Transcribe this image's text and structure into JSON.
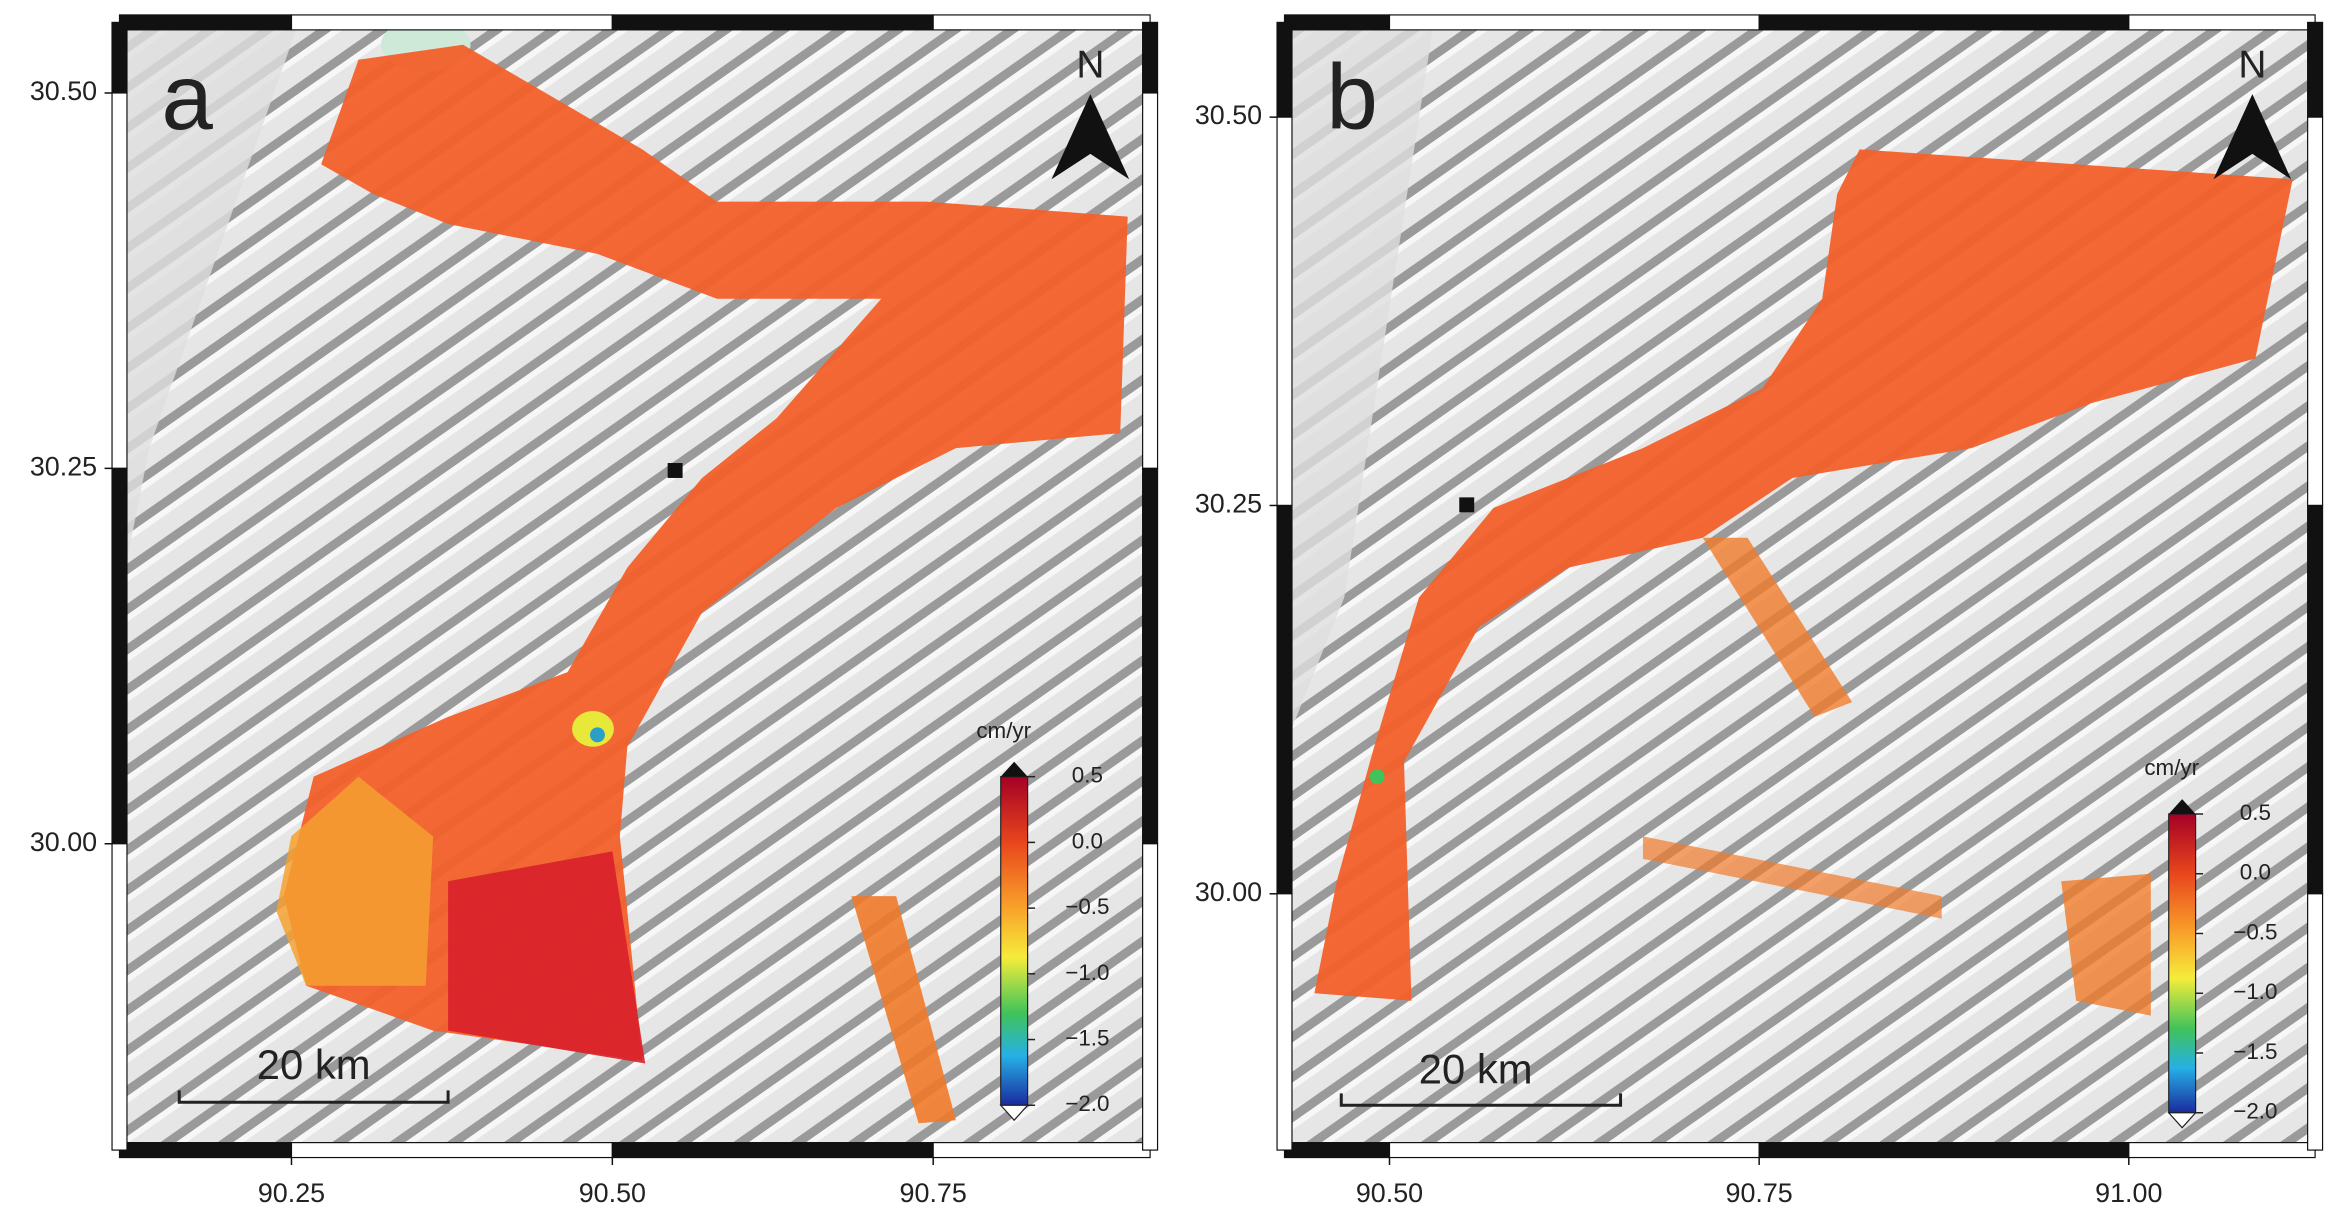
{
  "panels": [
    {
      "label": "a",
      "north": "N",
      "scale_bar": "20 km",
      "xlim": [
        90.116,
        90.919
      ],
      "ylim": [
        29.796,
        30.547
      ],
      "xticks": [
        {
          "value": 90.25,
          "label": "90.25"
        },
        {
          "value": 90.5,
          "label": "90.50"
        },
        {
          "value": 90.75,
          "label": "90.75"
        }
      ],
      "yticks": [
        {
          "value": 30.5,
          "label": "30.50"
        },
        {
          "value": 30.25,
          "label": "30.25"
        },
        {
          "value": 30.0,
          "label": "30.00"
        }
      ],
      "colorbar": {
        "unit": "cm/yr",
        "range": [
          -2.0,
          0.5
        ],
        "ticks": [
          {
            "value": 0.5,
            "label": "0.5"
          },
          {
            "value": 0.0,
            "label": "0.0"
          },
          {
            "value": -0.5,
            "label": "−0.5"
          },
          {
            "value": -1.0,
            "label": "−1.0"
          },
          {
            "value": -1.5,
            "label": "−1.5"
          },
          {
            "value": -2.0,
            "label": "−2.0"
          }
        ]
      }
    },
    {
      "label": "b",
      "north": "N",
      "scale_bar": "20 km",
      "xlim": [
        90.429,
        91.126
      ],
      "ylim": [
        29.835,
        30.561
      ],
      "xticks": [
        {
          "value": 90.5,
          "label": "90.50"
        },
        {
          "value": 90.75,
          "label": "90.75"
        },
        {
          "value": 91.0,
          "label": "91.00"
        }
      ],
      "yticks": [
        {
          "value": 30.5,
          "label": "30.50"
        },
        {
          "value": 30.25,
          "label": "30.25"
        },
        {
          "value": 30.0,
          "label": "30.00"
        }
      ],
      "colorbar": {
        "unit": "cm/yr",
        "range": [
          -2.0,
          0.5
        ],
        "ticks": [
          {
            "value": 0.5,
            "label": "0.5"
          },
          {
            "value": 0.0,
            "label": "0.0"
          },
          {
            "value": -0.5,
            "label": "−0.5"
          },
          {
            "value": -1.0,
            "label": "−1.0"
          },
          {
            "value": -1.5,
            "label": "−1.5"
          },
          {
            "value": -2.0,
            "label": "−2.0"
          }
        ]
      }
    }
  ]
}
